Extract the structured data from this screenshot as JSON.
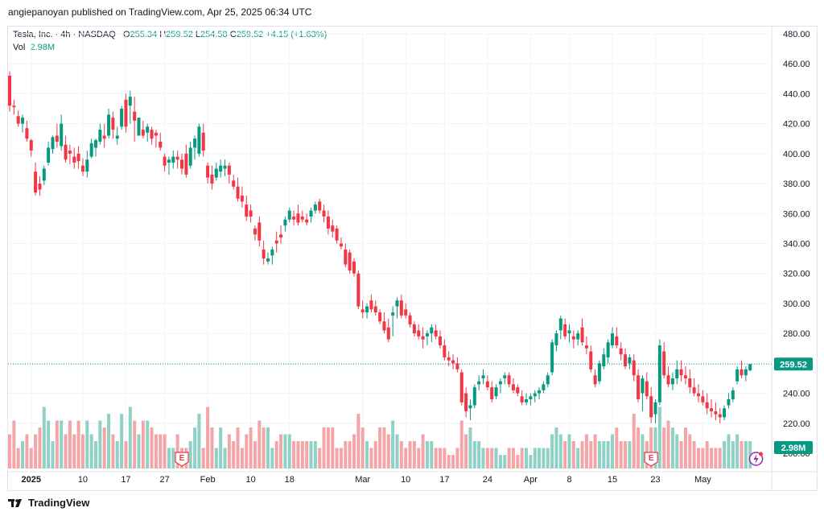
{
  "header": {
    "published_by": "angiepanoyan published on TradingView.com, Apr 25, 2025 06:34 UTC"
  },
  "legend": {
    "symbol": "Tesla, Inc. · 4h · NASDAQ",
    "open_label": "O",
    "open": "255.34",
    "high_label": "H",
    "high": "259.52",
    "low_label": "L",
    "low": "254.58",
    "close_label": "C",
    "close": "259.52",
    "change": "+4.15 (+1.63%)",
    "vol_label": "Vol",
    "vol": "2.98M"
  },
  "footer": {
    "brand": "TradingView"
  },
  "colors": {
    "up": "#089981",
    "down": "#f23645",
    "vol_up": "#8fd1c5",
    "vol_down": "#f4a5a8",
    "grid": "#f0f3fa",
    "axis_text": "#131722"
  },
  "chart_data": {
    "type": "candlestick",
    "title": "Tesla, Inc. · 4h · NASDAQ",
    "y_axis": {
      "min": 200,
      "max": 480,
      "ticks": [
        480,
        460,
        440,
        420,
        400,
        380,
        360,
        340,
        320,
        300,
        280,
        260,
        240,
        220,
        200
      ],
      "tick_labels": [
        "480.00",
        "460.00",
        "440.00",
        "420.00",
        "400.00",
        "380.00",
        "360.00",
        "340.00",
        "320.00",
        "300.00",
        "280.00",
        "260.00",
        "240.00",
        "220.00",
        "200.00"
      ]
    },
    "x_axis": {
      "labels": [
        {
          "label": "2025",
          "bar": 5,
          "bold": true
        },
        {
          "label": "10",
          "bar": 17
        },
        {
          "label": "17",
          "bar": 27
        },
        {
          "label": "27",
          "bar": 36
        },
        {
          "label": "Feb",
          "bar": 46
        },
        {
          "label": "10",
          "bar": 56
        },
        {
          "label": "18",
          "bar": 65
        },
        {
          "label": "Mar",
          "bar": 82
        },
        {
          "label": "10",
          "bar": 92
        },
        {
          "label": "17",
          "bar": 101
        },
        {
          "label": "24",
          "bar": 111
        },
        {
          "label": "Apr",
          "bar": 121
        },
        {
          "label": "8",
          "bar": 130
        },
        {
          "label": "15",
          "bar": 140
        },
        {
          "label": "23",
          "bar": 150
        },
        {
          "label": "May",
          "bar": 161
        }
      ]
    },
    "last_price": {
      "value": 259.52,
      "label": "259.52"
    },
    "last_volume": {
      "label": "2.98M"
    },
    "events": [
      {
        "type": "earnings",
        "label": "E",
        "bar": 40
      },
      {
        "type": "earnings",
        "label": "E",
        "bar": 149
      }
    ],
    "volume_max": 10,
    "ohlc": [
      [
        452,
        455,
        428,
        432,
        5
      ],
      [
        432,
        436,
        426,
        431,
        7
      ],
      [
        425,
        429,
        418,
        420,
        3
      ],
      [
        420,
        426,
        414,
        424,
        4
      ],
      [
        417,
        422,
        408,
        410,
        5
      ],
      [
        409,
        410,
        398,
        402,
        3
      ],
      [
        388,
        394,
        372,
        374,
        5
      ],
      [
        380,
        385,
        372,
        376,
        6
      ],
      [
        382,
        392,
        379,
        390,
        9
      ],
      [
        394,
        408,
        392,
        404,
        7
      ],
      [
        403,
        412,
        400,
        411,
        4
      ],
      [
        412,
        420,
        404,
        408,
        7
      ],
      [
        405,
        426,
        402,
        420,
        7
      ],
      [
        406,
        412,
        394,
        396,
        5
      ],
      [
        402,
        406,
        393,
        400,
        7
      ],
      [
        398,
        404,
        390,
        394,
        5
      ],
      [
        400,
        405,
        390,
        395,
        7
      ],
      [
        392,
        397,
        385,
        388,
        5
      ],
      [
        388,
        402,
        384,
        396,
        7
      ],
      [
        398,
        410,
        397,
        407,
        5
      ],
      [
        404,
        410,
        398,
        409,
        4
      ],
      [
        408,
        420,
        406,
        416,
        7
      ],
      [
        412,
        420,
        404,
        410,
        6
      ],
      [
        412,
        430,
        410,
        426,
        8
      ],
      [
        424,
        428,
        410,
        416,
        5
      ],
      [
        410,
        418,
        406,
        412,
        4
      ],
      [
        418,
        432,
        416,
        430,
        8
      ],
      [
        436,
        440,
        414,
        418,
        4
      ],
      [
        432,
        442,
        420,
        438,
        9
      ],
      [
        428,
        438,
        408,
        422,
        7
      ],
      [
        412,
        424,
        412,
        424,
        5
      ],
      [
        416,
        422,
        410,
        412,
        7
      ],
      [
        414,
        420,
        408,
        418,
        7
      ],
      [
        416,
        418,
        406,
        410,
        6
      ],
      [
        414,
        416,
        404,
        412,
        5
      ],
      [
        408,
        414,
        402,
        404,
        5
      ],
      [
        398,
        400,
        388,
        392,
        5
      ],
      [
        394,
        398,
        386,
        396,
        3
      ],
      [
        394,
        402,
        390,
        398,
        3
      ],
      [
        398,
        402,
        390,
        396,
        5
      ],
      [
        396,
        400,
        386,
        390,
        3
      ],
      [
        400,
        406,
        384,
        386,
        3
      ],
      [
        392,
        408,
        390,
        404,
        4
      ],
      [
        404,
        412,
        396,
        410,
        6
      ],
      [
        400,
        420,
        398,
        418,
        8
      ],
      [
        414,
        420,
        398,
        402,
        3
      ],
      [
        392,
        394,
        380,
        384,
        9
      ],
      [
        386,
        392,
        376,
        380,
        6
      ],
      [
        384,
        394,
        382,
        390,
        3
      ],
      [
        388,
        396,
        384,
        392,
        6
      ],
      [
        390,
        396,
        385,
        392,
        3
      ],
      [
        392,
        394,
        380,
        386,
        5
      ],
      [
        382,
        386,
        376,
        378,
        4
      ],
      [
        378,
        384,
        368,
        370,
        6
      ],
      [
        372,
        378,
        364,
        368,
        3
      ],
      [
        366,
        372,
        355,
        358,
        5
      ],
      [
        362,
        366,
        354,
        358,
        6
      ],
      [
        350,
        352,
        342,
        346,
        4
      ],
      [
        354,
        358,
        338,
        342,
        7
      ],
      [
        336,
        342,
        326,
        330,
        6
      ],
      [
        328,
        334,
        326,
        330,
        6
      ],
      [
        332,
        338,
        326,
        336,
        3
      ],
      [
        342,
        348,
        334,
        340,
        4
      ],
      [
        346,
        352,
        340,
        344,
        5
      ],
      [
        352,
        358,
        348,
        356,
        5
      ],
      [
        356,
        364,
        354,
        362,
        5
      ],
      [
        358,
        362,
        352,
        356,
        4
      ],
      [
        360,
        366,
        352,
        354,
        4
      ],
      [
        358,
        362,
        354,
        356,
        4
      ],
      [
        356,
        360,
        352,
        354,
        4
      ],
      [
        358,
        364,
        354,
        362,
        4
      ],
      [
        362,
        368,
        360,
        366,
        4
      ],
      [
        368,
        370,
        360,
        362,
        3
      ],
      [
        362,
        366,
        354,
        358,
        6
      ],
      [
        358,
        362,
        346,
        350,
        6
      ],
      [
        352,
        356,
        344,
        348,
        6
      ],
      [
        350,
        352,
        340,
        342,
        3
      ],
      [
        340,
        344,
        336,
        338,
        3
      ],
      [
        336,
        340,
        324,
        326,
        4
      ],
      [
        334,
        336,
        320,
        322,
        4
      ],
      [
        328,
        330,
        318,
        320,
        5
      ],
      [
        320,
        322,
        296,
        298,
        8
      ],
      [
        296,
        302,
        290,
        294,
        6
      ],
      [
        294,
        300,
        290,
        298,
        4
      ],
      [
        302,
        306,
        294,
        296,
        3
      ],
      [
        298,
        302,
        292,
        294,
        4
      ],
      [
        294,
        296,
        286,
        288,
        6
      ],
      [
        288,
        294,
        280,
        282,
        6
      ],
      [
        284,
        290,
        274,
        276,
        5
      ],
      [
        292,
        298,
        278,
        294,
        7
      ],
      [
        298,
        304,
        290,
        302,
        5
      ],
      [
        302,
        306,
        290,
        292,
        4
      ],
      [
        296,
        300,
        290,
        292,
        3
      ],
      [
        292,
        294,
        284,
        286,
        4
      ],
      [
        286,
        288,
        278,
        280,
        4
      ],
      [
        282,
        286,
        276,
        278,
        3
      ],
      [
        278,
        284,
        270,
        276,
        5
      ],
      [
        278,
        282,
        272,
        280,
        4
      ],
      [
        280,
        286,
        274,
        284,
        4
      ],
      [
        282,
        286,
        276,
        278,
        3
      ],
      [
        278,
        282,
        270,
        272,
        3
      ],
      [
        272,
        276,
        262,
        264,
        3
      ],
      [
        264,
        268,
        258,
        262,
        2
      ],
      [
        262,
        266,
        256,
        260,
        2
      ],
      [
        260,
        264,
        254,
        256,
        3
      ],
      [
        254,
        256,
        232,
        234,
        7
      ],
      [
        240,
        244,
        224,
        228,
        5
      ],
      [
        230,
        236,
        222,
        232,
        6
      ],
      [
        232,
        246,
        230,
        244,
        4
      ],
      [
        246,
        252,
        242,
        248,
        4
      ],
      [
        250,
        256,
        246,
        252,
        3
      ],
      [
        248,
        252,
        242,
        244,
        3
      ],
      [
        244,
        248,
        234,
        236,
        3
      ],
      [
        238,
        246,
        236,
        244,
        3
      ],
      [
        246,
        250,
        240,
        248,
        2
      ],
      [
        250,
        254,
        246,
        252,
        2
      ],
      [
        252,
        254,
        244,
        246,
        3
      ],
      [
        246,
        250,
        240,
        242,
        3
      ],
      [
        244,
        246,
        238,
        240,
        2
      ],
      [
        238,
        242,
        232,
        234,
        3
      ],
      [
        234,
        240,
        232,
        236,
        3
      ],
      [
        236,
        240,
        232,
        238,
        2
      ],
      [
        238,
        242,
        234,
        240,
        3
      ],
      [
        240,
        244,
        236,
        242,
        3
      ],
      [
        242,
        248,
        240,
        246,
        3
      ],
      [
        246,
        254,
        244,
        252,
        3
      ],
      [
        254,
        276,
        252,
        274,
        5
      ],
      [
        272,
        282,
        268,
        280,
        6
      ],
      [
        282,
        292,
        276,
        290,
        5
      ],
      [
        286,
        290,
        276,
        278,
        4
      ],
      [
        280,
        286,
        274,
        282,
        5
      ],
      [
        278,
        282,
        270,
        276,
        4
      ],
      [
        276,
        282,
        272,
        280,
        3
      ],
      [
        284,
        290,
        272,
        274,
        4
      ],
      [
        272,
        278,
        266,
        270,
        5
      ],
      [
        268,
        272,
        254,
        256,
        4
      ],
      [
        252,
        256,
        244,
        246,
        5
      ],
      [
        248,
        262,
        246,
        260,
        4
      ],
      [
        258,
        270,
        256,
        266,
        4
      ],
      [
        264,
        276,
        260,
        274,
        4
      ],
      [
        272,
        284,
        270,
        280,
        5
      ],
      [
        278,
        284,
        270,
        272,
        6
      ],
      [
        270,
        274,
        262,
        266,
        4
      ],
      [
        266,
        270,
        256,
        258,
        4
      ],
      [
        260,
        266,
        256,
        264,
        4
      ],
      [
        262,
        266,
        248,
        252,
        8
      ],
      [
        252,
        256,
        234,
        236,
        6
      ],
      [
        240,
        252,
        228,
        250,
        5
      ],
      [
        248,
        254,
        236,
        238,
        4
      ],
      [
        238,
        244,
        220,
        224,
        6
      ],
      [
        226,
        236,
        220,
        234,
        6
      ],
      [
        234,
        276,
        232,
        272,
        9
      ],
      [
        268,
        274,
        250,
        252,
        6
      ],
      [
        252,
        258,
        244,
        246,
        7
      ],
      [
        246,
        254,
        242,
        250,
        6
      ],
      [
        250,
        262,
        246,
        256,
        5
      ],
      [
        256,
        262,
        248,
        252,
        4
      ],
      [
        252,
        258,
        246,
        250,
        6
      ],
      [
        250,
        256,
        240,
        244,
        5
      ],
      [
        244,
        250,
        238,
        240,
        4
      ],
      [
        240,
        246,
        234,
        238,
        3
      ],
      [
        238,
        242,
        232,
        234,
        3
      ],
      [
        234,
        240,
        226,
        230,
        4
      ],
      [
        230,
        236,
        224,
        228,
        3
      ],
      [
        228,
        234,
        222,
        226,
        3
      ],
      [
        226,
        230,
        220,
        224,
        3
      ],
      [
        224,
        232,
        222,
        230,
        4
      ],
      [
        232,
        240,
        230,
        236,
        5
      ],
      [
        236,
        244,
        234,
        242,
        4
      ],
      [
        248,
        258,
        246,
        256,
        5
      ],
      [
        256,
        262,
        250,
        252,
        4
      ],
      [
        252,
        258,
        248,
        256,
        4
      ],
      [
        255.34,
        259.52,
        254.58,
        259.52,
        4
      ]
    ]
  }
}
